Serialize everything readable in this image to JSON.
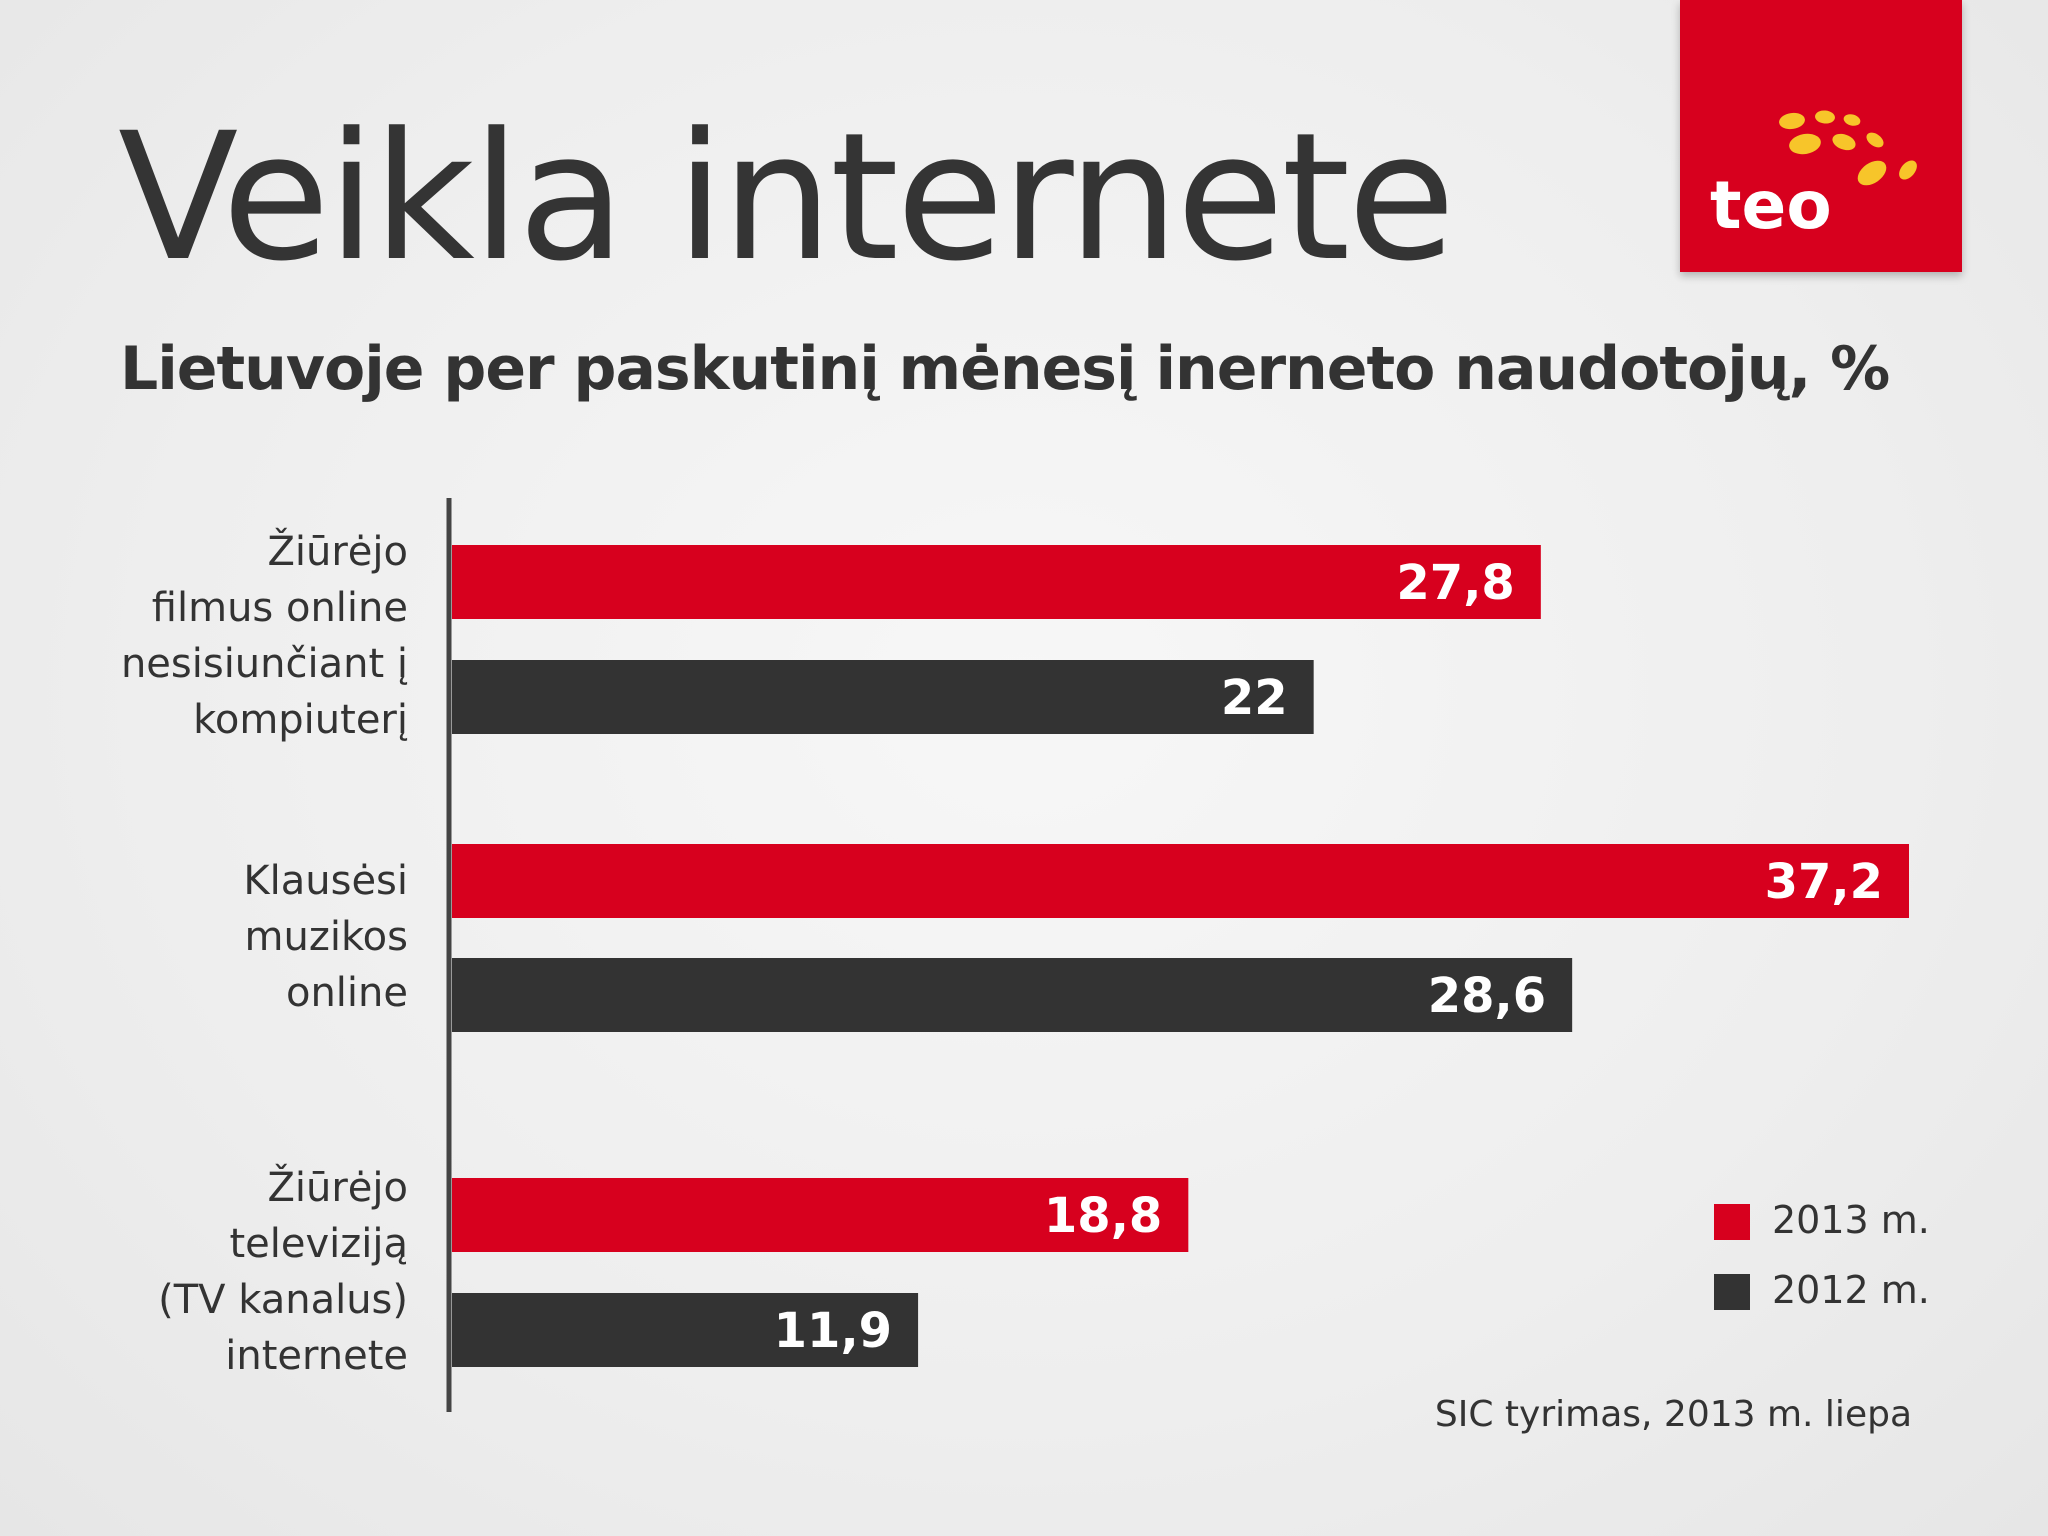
{
  "header": {
    "title": "Veikla internete",
    "subtitle": "Lietuvoje per paskutinį mėnesį inerneto naudotojų, %"
  },
  "logo": {
    "text": "teo",
    "colors": {
      "background": "#d7001e",
      "dots": "#f7c52a",
      "text": "#ffffff"
    }
  },
  "chart_data": {
    "type": "bar",
    "orientation": "horizontal",
    "categories": [
      [
        "Žiūrėjo",
        "filmus online",
        "nesisiunčiant į",
        "kompiuterį"
      ],
      [
        "Klausėsi",
        "muzikos",
        "online"
      ],
      [
        "Žiūrėjo",
        "televiziją",
        "(TV kanalus)",
        "internete"
      ]
    ],
    "series": [
      {
        "name": "2013 m.",
        "color": "#d7001e",
        "values": [
          27.8,
          37.2,
          18.8
        ],
        "labels": [
          "27,8",
          "37,2",
          "18,8"
        ]
      },
      {
        "name": "2012 m.",
        "color": "#333333",
        "values": [
          22,
          28.6,
          11.9
        ],
        "labels": [
          "22",
          "28,6",
          "11,9"
        ]
      }
    ],
    "xlim": [
      0,
      37.2
    ],
    "grid": false,
    "legend": "bottom-right"
  },
  "legend": {
    "items": [
      "2013 m.",
      "2012 m."
    ]
  },
  "source": "SIC tyrimas, 2013 m. liepa"
}
